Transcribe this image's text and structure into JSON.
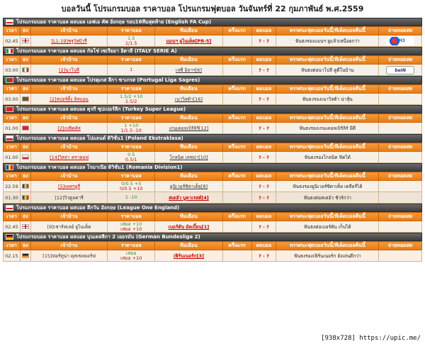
{
  "title": "บอลวันนี้ โปรแกรมบอล ราคาบอล โปรแกรมฟุตบอล วันจันทร์ที่ 22 กุมภาพันธ์ พ.ศ.2559",
  "columns": [
    "เวลา",
    "ธง",
    "เจ้าบ้าน",
    "ราคาบอล",
    "ทีมเยือน",
    "ครึ่งแรก",
    "ผลบอล",
    "ทรรศนะฟุตบอลวันนี้/ทีเด็ดบอลคืนนี้",
    "ถ่ายทอดสด"
  ],
  "leagues": [
    {
      "name": "โปรแกรมบอล ราคาบอล ผลบอล เอฟเอ คัพ อังกฤษ รอบ16ทีมสุดท้าย (English FA Cup)",
      "flag": "en",
      "matches": [
        {
          "time": "02.45",
          "flag": "en",
          "home": "[L1-19]ชรูว์สบิวรี่",
          "odds1": "1.5",
          "odds2": "1/1.5",
          "away": "แมนฯ ยูไนเต็ด[PR-5]",
          "half": "",
          "result": "? - ?",
          "tip": "ฟันธงรองแมนฯ ยูแล้วเหนื่อยกว่า",
          "tv": "ch3",
          "tv_label": "CH3"
        }
      ]
    },
    {
      "name": "โปรแกรมบอล ราคาบอล ผลบอล กัลโช่ เซเรียอา อิตาลี (ITALY SERIE A)",
      "flag": "it",
      "matches": [
        {
          "time": "03.00",
          "flag": "it",
          "home": "[2]นาโปลี",
          "odds1": "",
          "odds2": "1",
          "away": "เจซี อิลาฯ[6]",
          "half": "",
          "result": "? - ?",
          "tip": "ฟันธงต่อนาโปลี ดูดีในบ้าน",
          "tv": "bein",
          "tv_label": "beIN"
        }
      ]
    },
    {
      "name": "โปรแกรมบอล ราคาบอล ผลบอล โปรตุเกส ลีกา ซาเกรส (Portugal Liga Sagres)",
      "flag": "pt",
      "matches": [
        {
          "time": "03.00",
          "flag": "pt",
          "home": "[2]สปอร์ติ้ง ลิสบอน",
          "odds1": "1.5/2 +10",
          "odds2": "1.5/2",
          "away": "เนาวิสต้า[16]",
          "half": "",
          "result": "? - ?",
          "tip": "ฟันธงรองเนาวิสต้า น่าสุ้น",
          "tv": "",
          "tv_label": ""
        }
      ]
    },
    {
      "name": "โปรแกรมบอล ราคาบอล ผลบอล ตุรกี ซุปเปอร์ลีก (Turkey Super League)",
      "flag": "tr",
      "matches": [
        {
          "time": "01.00",
          "flag": "tr",
          "home": "[2]เบซิคตัส",
          "odds1": "1 +10",
          "odds2": "1/1.5 -10",
          "away": "เกนเคอลเบิร์ลิร์[12]",
          "half": "",
          "result": "? - ?",
          "tip": "ฟันธงรองเกนเคอลเบิร์ลิร์ มีดี",
          "tv": "",
          "tv_label": ""
        }
      ]
    },
    {
      "name": "โปรแกรมบอล ราคาบอล ผลบอล โปแลนด์ ดิวิชั่น1 (Poland Ekstraklasa)",
      "flag": "pl",
      "matches": [
        {
          "time": "01.00",
          "flag": "pl",
          "home": "[14]วิสล่า คราคอฟ",
          "odds1": "0.5",
          "odds2": "0.5/1",
          "away": "โกลนิค เลชน่า[10]",
          "half": "",
          "result": "? - ?",
          "tip": "ฟันธงรองโกลนิค ฟิตได้",
          "tv": "",
          "tv_label": ""
        }
      ]
    },
    {
      "name": "โปรแกรมบอล ราคาบอล ผลบอล โรมาเนีย ดิวิชั่น1 (Romania Division1)",
      "flag": "ro",
      "matches": [
        {
          "time": "22.59",
          "flag": "ro",
          "home": "[5]เพทฯอูรี",
          "odds1": "0/0.5 +5",
          "odds2": "0/0.5 +10",
          "away": "ยูนิเวอร์ซิตาเต็ย[8]",
          "half": "",
          "result": "? - ?",
          "tip": "ฟันธงรองยูนิเวอร์ซิตาเต็ย เคลียร์ได้",
          "tv": "",
          "tv_label": ""
        },
        {
          "time": "01.30",
          "flag": "ro",
          "home": "[12]วิวตูลคารี",
          "odds1": "1 -10",
          "odds2": "",
          "away": "สเตอัว บูคาเรสต์[4]",
          "half": "",
          "result": "? - ?",
          "tip": "ฟันธงต่อสเตอัว ชัวร์กว่า",
          "tv": "",
          "tv_label": ""
        }
      ]
    },
    {
      "name": "โปรแกรมบอล ราคาบอล ผลบอล ลีกวัน อังกฤษ (League One England)",
      "flag": "en",
      "matches": [
        {
          "time": "02.45",
          "flag": "en",
          "home": "[9]เชาร์ฟเลย์ ยูไนเต็ด",
          "odds1": "เสมอ +10",
          "odds2": "เสมอ +10",
          "away": "เบอร์ตัน อัลเบี้ยน[1]",
          "half": "",
          "result": "? - ?",
          "tip": "ฟันธงต่อเบอร์ตัน เก็บได้",
          "tv": "",
          "tv_label": ""
        }
      ]
    },
    {
      "name": "โปรแกรมบอล ราคาบอล ผลบอล บุนเดสลีกา 2 เยอรมัน (German Bundesliga 2)",
      "flag": "de",
      "matches": [
        {
          "time": "02.15",
          "flag": "de",
          "home": "[15]ฟอร์ทูน่า ดุสเซลดอร์ฟ",
          "odds1": "เสมอ",
          "odds2": "เสมอ +10",
          "away": "เฟิร์นเนอร์ก[3]",
          "half": "",
          "result": "? - ?",
          "tip": "ฟันธงรองเฟิร์นเนอร์ก ยังเล่นดีกว่า",
          "tv": "",
          "tv_label": ""
        }
      ]
    }
  ],
  "watermark": "[938x728] https://upic.me/"
}
